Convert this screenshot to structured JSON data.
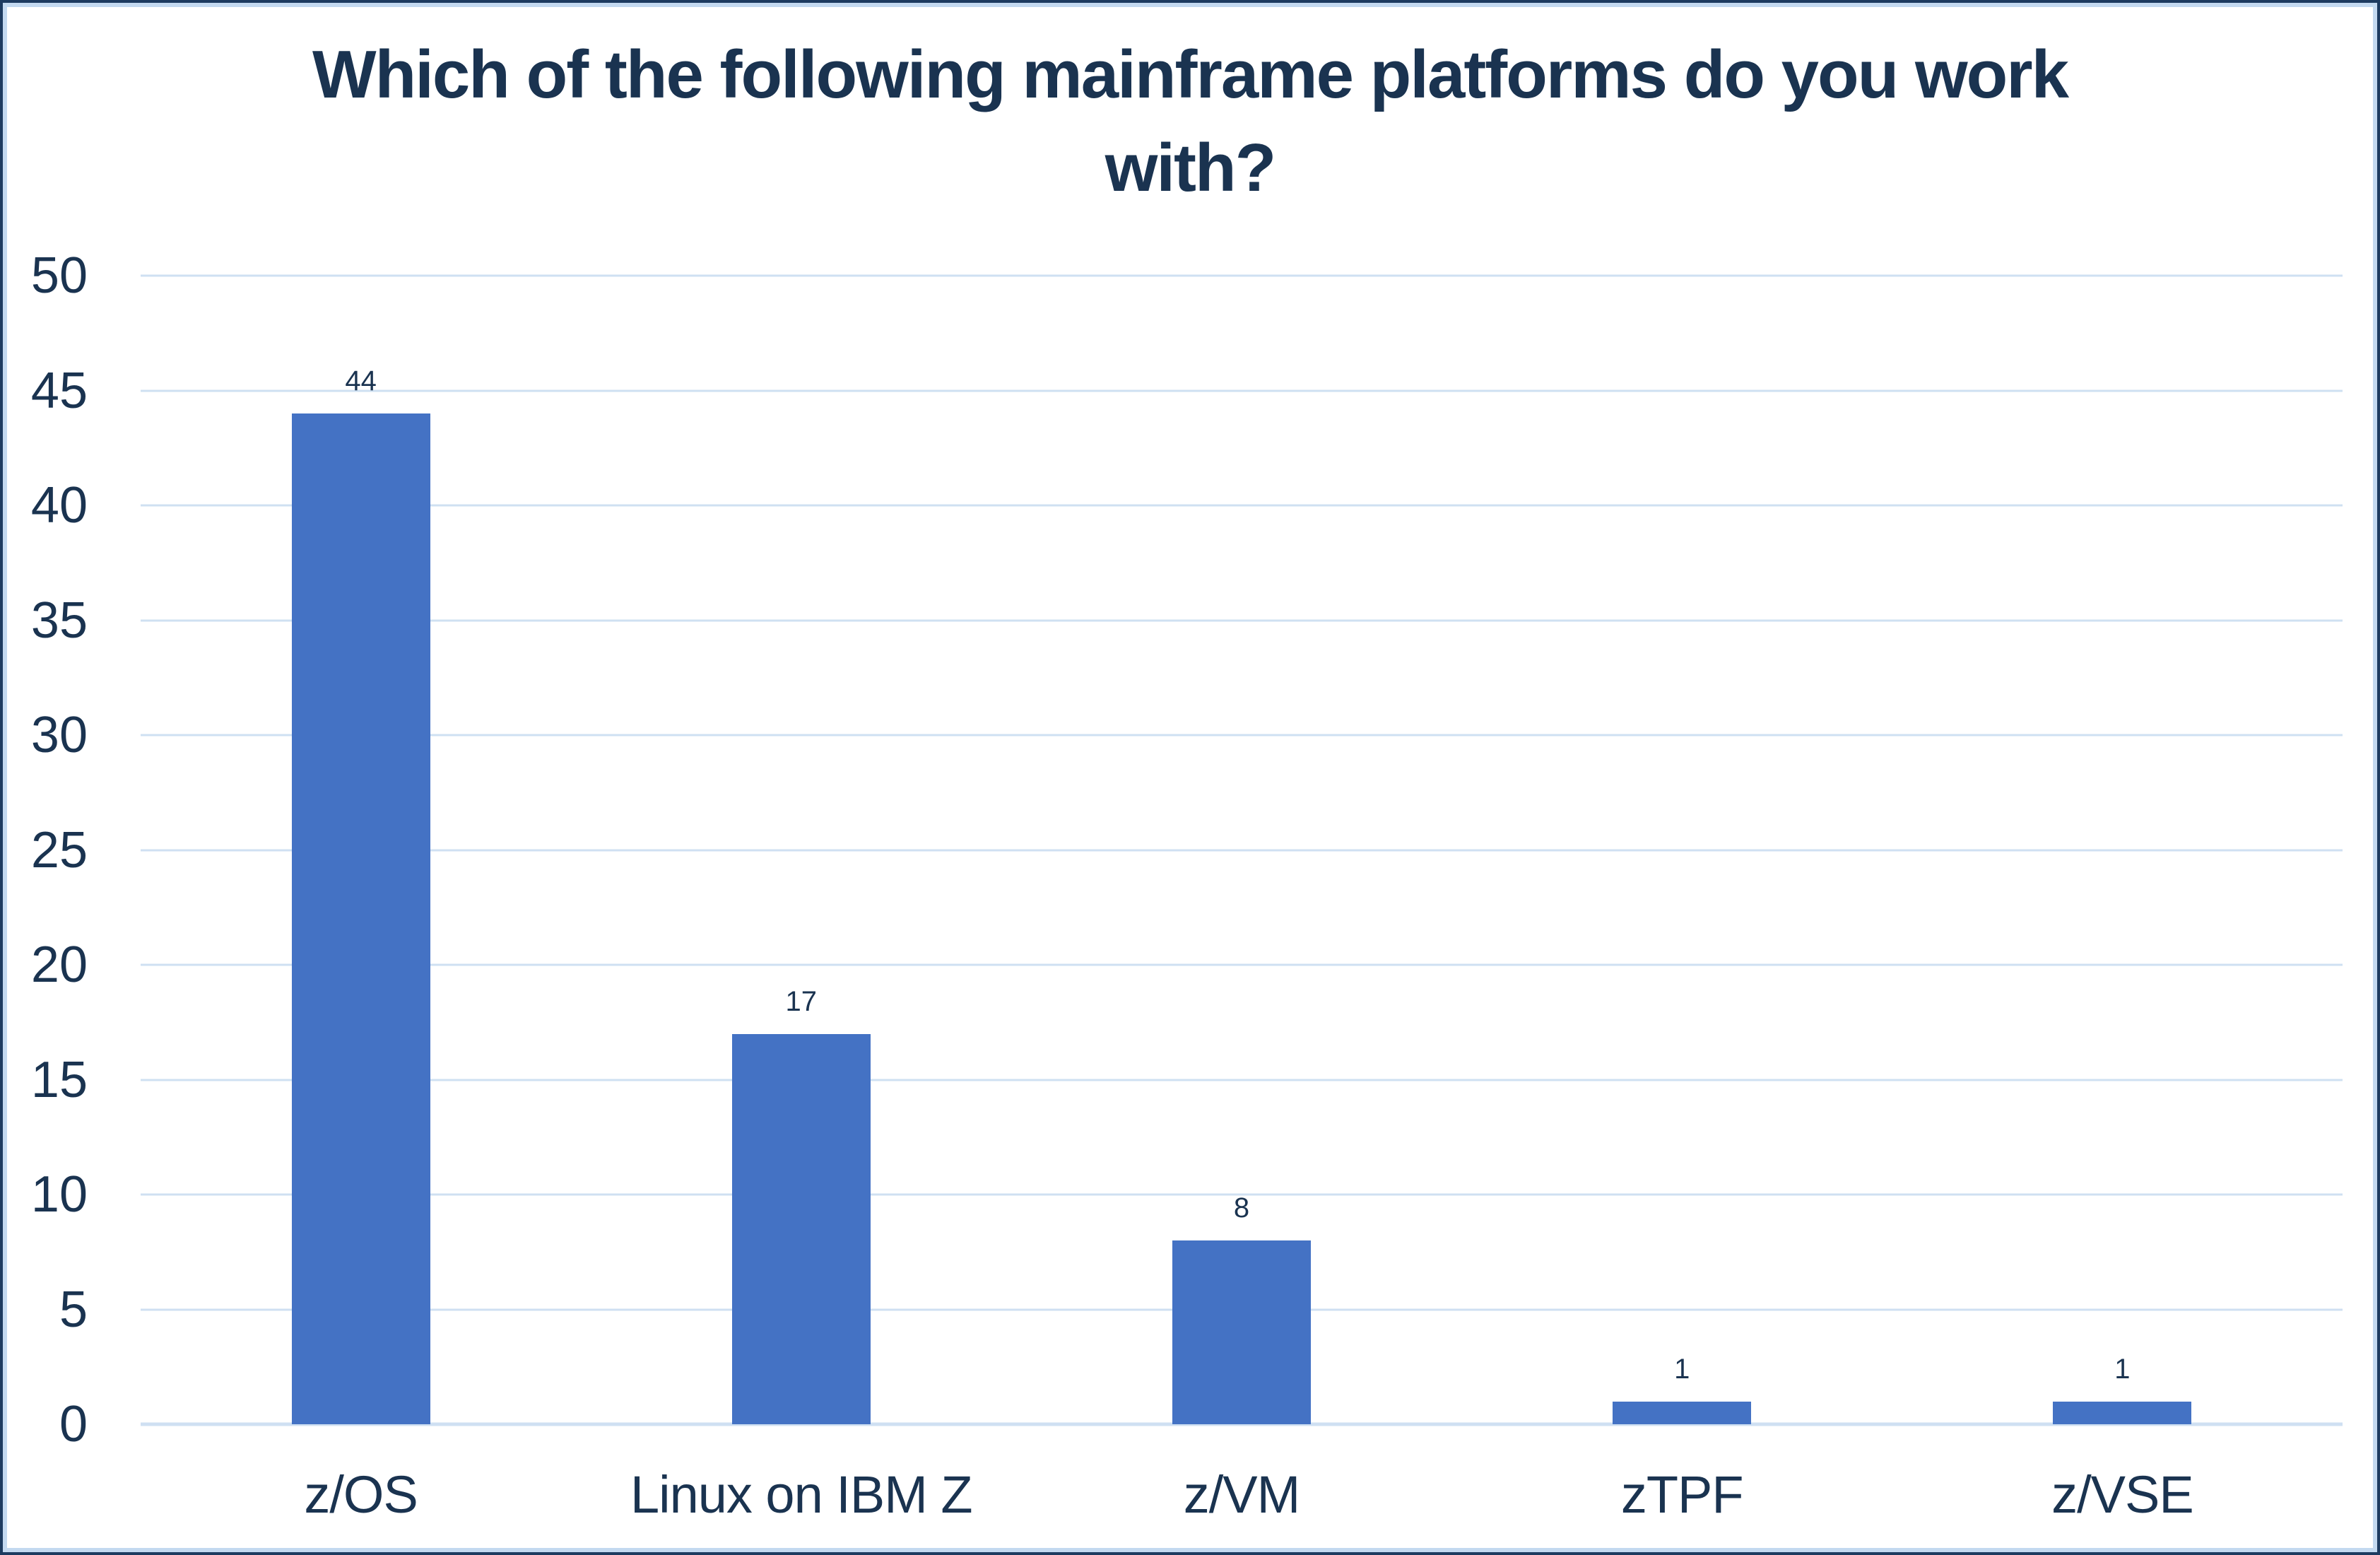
{
  "chart_data": {
    "type": "bar",
    "title": "Which of the following mainframe platforms do you work with?",
    "title_lines": [
      "Which of the following mainframe platforms do you work",
      "with?"
    ],
    "categories": [
      "z/OS",
      "Linux on IBM Z",
      "z/VM",
      "zTPF",
      "z/VSE"
    ],
    "values": [
      44,
      17,
      8,
      1,
      1
    ],
    "data_labels": [
      "44",
      "17",
      "8",
      "1",
      "1"
    ],
    "xlabel": "",
    "ylabel": "",
    "ylim": [
      0,
      50
    ],
    "yticks": [
      0,
      5,
      10,
      15,
      20,
      25,
      30,
      35,
      40,
      45,
      50
    ],
    "grid": true,
    "legend": "none",
    "colors": {
      "bar": "#4472C4",
      "gridline": "#CFE0F2",
      "text": "#1A3350",
      "border_outer": "#1D3B60",
      "border_inner": "#C3D9F0",
      "background": "#FFFFFF"
    }
  }
}
